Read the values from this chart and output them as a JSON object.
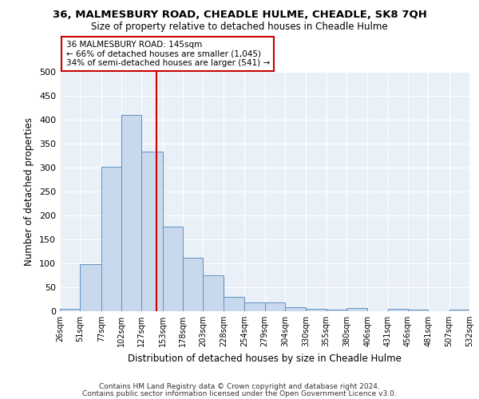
{
  "title1": "36, MALMESBURY ROAD, CHEADLE HULME, CHEADLE, SK8 7QH",
  "title2": "Size of property relative to detached houses in Cheadle Hulme",
  "xlabel": "Distribution of detached houses by size in Cheadle Hulme",
  "ylabel": "Number of detached properties",
  "bin_edges": [
    26,
    51,
    77,
    102,
    127,
    153,
    178,
    203,
    228,
    254,
    279,
    304,
    330,
    355,
    380,
    406,
    431,
    456,
    481,
    507,
    532
  ],
  "bar_heights": [
    5,
    99,
    301,
    410,
    333,
    177,
    112,
    75,
    30,
    18,
    18,
    9,
    5,
    4,
    6,
    0,
    5,
    4,
    0,
    4
  ],
  "bar_color": "#c9d9ed",
  "bar_edgecolor": "#6090c0",
  "property_size": 145,
  "red_line_color": "#cc0000",
  "annotation_line1": "36 MALMESBURY ROAD: 145sqm",
  "annotation_line2": "← 66% of detached houses are smaller (1,045)",
  "annotation_line3": "34% of semi-detached houses are larger (541) →",
  "footer_line1": "Contains HM Land Registry data © Crown copyright and database right 2024.",
  "footer_line2": "Contains public sector information licensed under the Open Government Licence v3.0.",
  "ylim": [
    0,
    500
  ],
  "background_color": "#eaf0f8"
}
